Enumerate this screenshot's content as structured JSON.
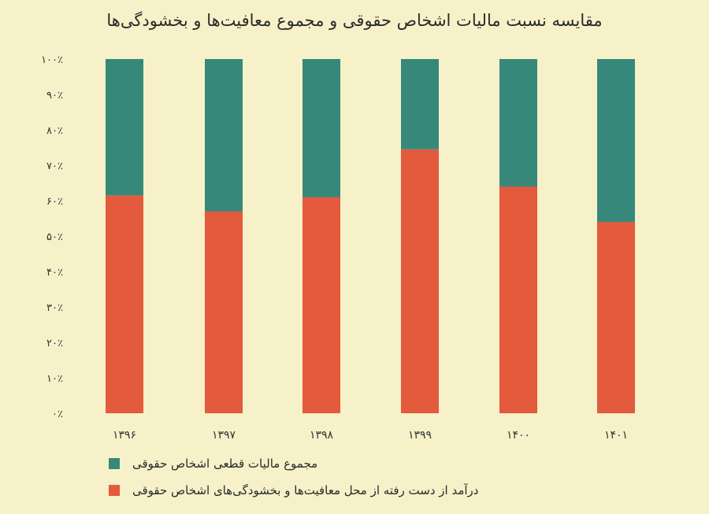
{
  "chart_data": {
    "type": "bar",
    "stacked": true,
    "title": "مقایسه نسبت مالیات اشخاص حقوقی و مجموع معافیت‌ها و بخشودگی‌ها",
    "categories": [
      "۱۳۹۶",
      "۱۳۹۷",
      "۱۳۹۸",
      "۱۳۹۹",
      "۱۴۰۰",
      "۱۴۰۱"
    ],
    "series": [
      {
        "name": "درآمد از دست رفته از محل معافیت‌ها و بخشودگی‌های اشخاص حقوقی",
        "color": "#e35a3d",
        "values": [
          61.5,
          57,
          61,
          74.5,
          64,
          54
        ]
      },
      {
        "name": "مجموع مالیات قطعی اشخاص  حقوقی",
        "color": "#36897a",
        "values": [
          38.5,
          43,
          39,
          25.5,
          36,
          46
        ]
      }
    ],
    "ylim": [
      0,
      100
    ],
    "y_ticks": [
      "۰٪",
      "۱۰٪",
      "۲۰٪",
      "۳۰٪",
      "۴۰٪",
      "۵۰٪",
      "۶۰٪",
      "۷۰٪",
      "۸۰٪",
      "۹۰٪",
      "۱۰۰٪"
    ],
    "xlabel": "",
    "ylabel": "",
    "grid": false,
    "legend": "bottom-left"
  },
  "legend": {
    "item_green": "مجموع مالیات قطعی اشخاص  حقوقی",
    "item_red": "درآمد از دست رفته از محل معافیت‌ها و بخشودگی‌های اشخاص حقوقی"
  }
}
